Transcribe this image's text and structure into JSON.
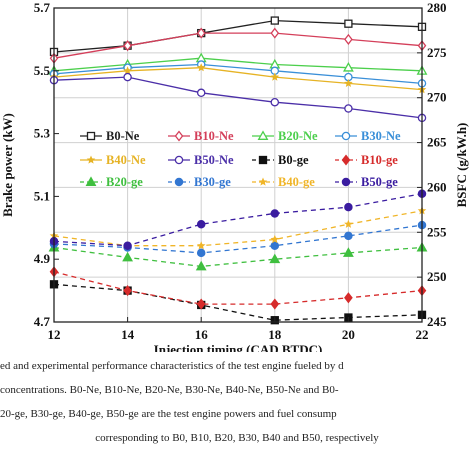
{
  "chart_data": {
    "type": "line",
    "x": [
      12,
      14,
      16,
      18,
      20,
      22
    ],
    "xlabel": "Injection timing (CAD BTDC)",
    "xlim": [
      12,
      22
    ],
    "xticks": [
      "12",
      "14",
      "16",
      "18",
      "20",
      "22"
    ],
    "y1label": "Brake power (kW)",
    "y1lim": [
      4.7,
      5.7
    ],
    "y1ticks": [
      "4.7",
      "4.9",
      "5.1",
      "5.3",
      "5.5",
      "5.7"
    ],
    "y2label": "BSFC (g/kW.h)",
    "y2lim": [
      245,
      280
    ],
    "y2ticks": [
      "245",
      "250",
      "255",
      "260",
      "265",
      "270",
      "275",
      "280"
    ],
    "grid": true,
    "legend_position": "middle",
    "series": [
      {
        "name": "B0-Ne",
        "axis": "left",
        "color": "#222222",
        "marker": "square-open",
        "dash": "",
        "values": [
          5.56,
          5.58,
          5.62,
          5.66,
          5.65,
          5.64
        ]
      },
      {
        "name": "B10-Ne",
        "axis": "left",
        "color": "#d43f5a",
        "marker": "diamond-open",
        "dash": "",
        "values": [
          5.54,
          5.58,
          5.62,
          5.62,
          5.6,
          5.58
        ]
      },
      {
        "name": "B20-Ne",
        "axis": "left",
        "color": "#4ccf4c",
        "marker": "triangle-open",
        "dash": "",
        "values": [
          5.5,
          5.52,
          5.54,
          5.52,
          5.51,
          5.5
        ]
      },
      {
        "name": "B30-Ne",
        "axis": "left",
        "color": "#3a8fd8",
        "marker": "circle-open",
        "dash": "",
        "values": [
          5.49,
          5.51,
          5.52,
          5.5,
          5.48,
          5.46
        ]
      },
      {
        "name": "B40-Ne",
        "axis": "left",
        "color": "#e6b325",
        "marker": "star",
        "dash": "",
        "values": [
          5.48,
          5.5,
          5.51,
          5.48,
          5.46,
          5.44
        ]
      },
      {
        "name": "B50-Ne",
        "axis": "left",
        "color": "#4b2fa8",
        "marker": "circle-open",
        "dash": "",
        "values": [
          5.47,
          5.48,
          5.43,
          5.4,
          5.38,
          5.35
        ]
      },
      {
        "name": "B0-ge",
        "axis": "right",
        "color": "#111111",
        "marker": "square",
        "dash": "5,4",
        "values": [
          249.2,
          248.5,
          246.9,
          245.2,
          245.5,
          245.8
        ]
      },
      {
        "name": "B10-ge",
        "axis": "right",
        "color": "#d62b2b",
        "marker": "diamond",
        "dash": "5,4",
        "values": [
          250.6,
          248.5,
          247.0,
          247.0,
          247.7,
          248.5
        ]
      },
      {
        "name": "B20-ge",
        "axis": "right",
        "color": "#3fbf3f",
        "marker": "triangle",
        "dash": "5,4",
        "values": [
          253.3,
          252.2,
          251.2,
          252.0,
          252.7,
          253.3
        ]
      },
      {
        "name": "B30-ge",
        "axis": "right",
        "color": "#3276d1",
        "marker": "circle",
        "dash": "5,4",
        "values": [
          253.7,
          253.3,
          252.7,
          253.5,
          254.6,
          255.8
        ]
      },
      {
        "name": "B40-ge",
        "axis": "right",
        "color": "#f0b528",
        "marker": "star",
        "dash": "5,4",
        "values": [
          254.6,
          253.5,
          253.5,
          254.2,
          255.9,
          257.4
        ]
      },
      {
        "name": "B50-ge",
        "axis": "right",
        "color": "#3a1ca0",
        "marker": "circle",
        "dash": "5,4",
        "values": [
          254.0,
          253.5,
          255.9,
          257.1,
          257.8,
          259.3
        ]
      }
    ]
  },
  "caption": {
    "line1": "ed and experimental performance characteristics of the test engine fueled by d",
    "line2": " concentrations. B0-Ne, B10-Ne, B20-Ne, B30-Ne, B40-Ne, B50-Ne and B0-",
    "line3": "20-ge, B30-ge, B40-ge, B50-ge are the test engine powers and fuel consump",
    "line4": "corresponding to B0, B10, B20, B30, B40 and B50, respectively"
  }
}
